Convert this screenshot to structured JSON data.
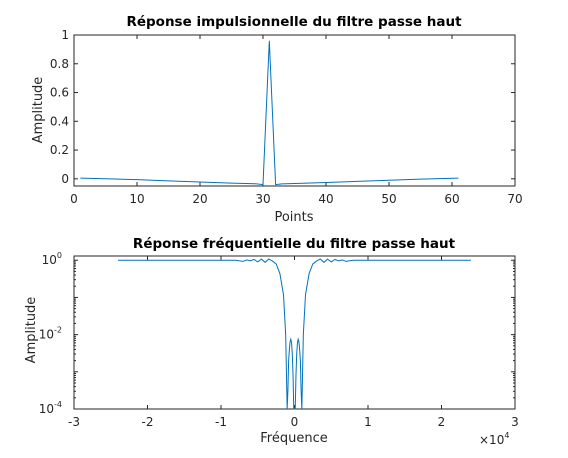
{
  "colors": {
    "line": "#0072BD",
    "axis": "#262626",
    "background": "#ffffff"
  },
  "chart_data": [
    {
      "type": "line",
      "title": "Réponse impulsionnelle du filtre passe haut",
      "xlabel": "Points",
      "ylabel": "Amplitude",
      "xlim": [
        0,
        70
      ],
      "ylim": [
        -0.05,
        1
      ],
      "xticks": [
        "0",
        "10",
        "20",
        "30",
        "40",
        "50",
        "60",
        "70"
      ],
      "yticks": [
        "0",
        "0.2",
        "0.4",
        "0.6",
        "0.8",
        "1"
      ],
      "box": true,
      "grid": false,
      "series": [
        {
          "x": [
            1,
            5,
            10,
            15,
            20,
            25,
            29,
            30,
            31,
            32,
            33,
            37,
            40,
            45,
            50,
            55,
            61
          ],
          "values": [
            0.005,
            0.0,
            -0.006,
            -0.014,
            -0.022,
            -0.03,
            -0.035,
            -0.04,
            0.96,
            -0.04,
            -0.035,
            -0.03,
            -0.026,
            -0.018,
            -0.01,
            -0.002,
            0.005
          ]
        }
      ]
    },
    {
      "type": "line",
      "title": "Réponse fréquentielle du filtre passe haut",
      "xlabel": "Fréquence",
      "ylabel": "Amplitude",
      "xscale_factor": "×10",
      "xscale_exponent": "4",
      "xlim": [
        -3,
        3
      ],
      "yscale": "log",
      "ylim": [
        0.0001,
        1.3
      ],
      "xticks": [
        "-3",
        "-2",
        "-1",
        "0",
        "1",
        "2",
        "3"
      ],
      "yticks": [
        {
          "base": "10",
          "exp": "0"
        },
        {
          "base": "10",
          "exp": "-2"
        },
        {
          "base": "10",
          "exp": "-4"
        }
      ],
      "box": true,
      "grid": false,
      "series": [
        {
          "x": [
            -2.4,
            -0.8,
            -0.7,
            -0.65,
            -0.6,
            -0.55,
            -0.5,
            -0.45,
            -0.4,
            -0.35,
            -0.3,
            -0.25,
            -0.2,
            -0.15,
            -0.12,
            -0.1,
            -0.09,
            -0.08,
            -0.07,
            -0.06,
            -0.05,
            -0.04,
            -0.03,
            -0.02,
            -0.01,
            0.0,
            0.01,
            0.02,
            0.03,
            0.04,
            0.05,
            0.06,
            0.07,
            0.08,
            0.09,
            0.1,
            0.12,
            0.15,
            0.2,
            0.25,
            0.3,
            0.35,
            0.4,
            0.45,
            0.5,
            0.55,
            0.6,
            0.65,
            0.7,
            0.8,
            2.4
          ],
          "values": [
            1.0,
            1.0,
            0.93,
            1.02,
            0.96,
            1.05,
            0.9,
            1.07,
            0.88,
            1.08,
            0.95,
            0.8,
            0.45,
            0.12,
            0.01,
            0.0001,
            0.0003,
            0.002,
            0.004,
            0.0065,
            0.0075,
            0.006,
            0.003,
            0.0008,
            0.0001,
            0.0001,
            0.0001,
            0.0008,
            0.003,
            0.006,
            0.0075,
            0.0065,
            0.004,
            0.002,
            0.0003,
            0.0001,
            0.01,
            0.12,
            0.45,
            0.8,
            0.95,
            1.08,
            0.88,
            1.07,
            0.9,
            1.05,
            0.96,
            1.02,
            0.93,
            1.0,
            1.0
          ]
        }
      ]
    }
  ]
}
